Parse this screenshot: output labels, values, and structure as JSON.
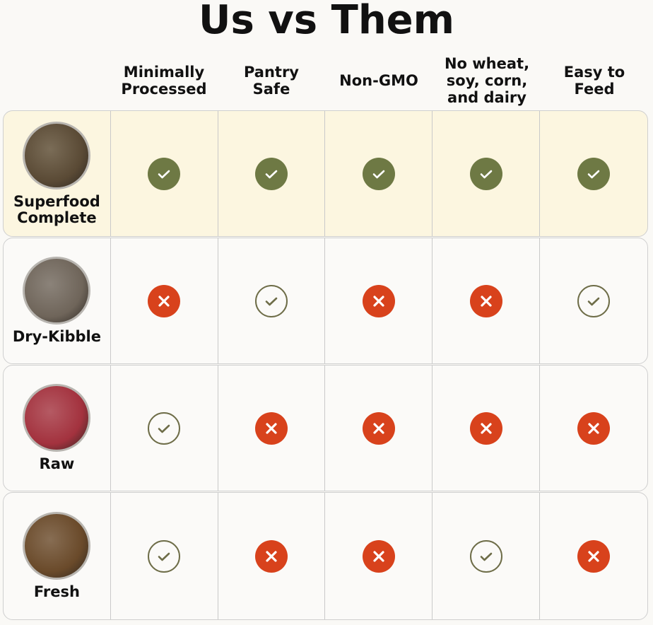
{
  "title": "Us vs Them",
  "columns": [
    "Minimally\nProcessed",
    "Pantry\nSafe",
    "Non-GMO",
    "No wheat,\nsoy, corn,\nand dairy",
    "Easy to\nFeed"
  ],
  "rows": [
    {
      "label": "Superfood\nComplete",
      "highlight": true,
      "bowl_color": "#5a4a35",
      "values": [
        "yes",
        "yes",
        "yes",
        "yes",
        "yes"
      ]
    },
    {
      "label": "Dry-Kibble",
      "highlight": false,
      "bowl_color": "#6f655a",
      "values": [
        "no",
        "partial",
        "no",
        "no",
        "partial"
      ]
    },
    {
      "label": "Raw",
      "highlight": false,
      "bowl_color": "#a3323e",
      "values": [
        "partial",
        "no",
        "no",
        "no",
        "no"
      ]
    },
    {
      "label": "Fresh",
      "highlight": false,
      "bowl_color": "#6a4a2a",
      "values": [
        "partial",
        "no",
        "no",
        "partial",
        "no"
      ]
    }
  ],
  "colors": {
    "yes": "#6e7944",
    "no": "#d8421c",
    "partial": "#6e6d48",
    "highlight": "#fcf6e0"
  }
}
